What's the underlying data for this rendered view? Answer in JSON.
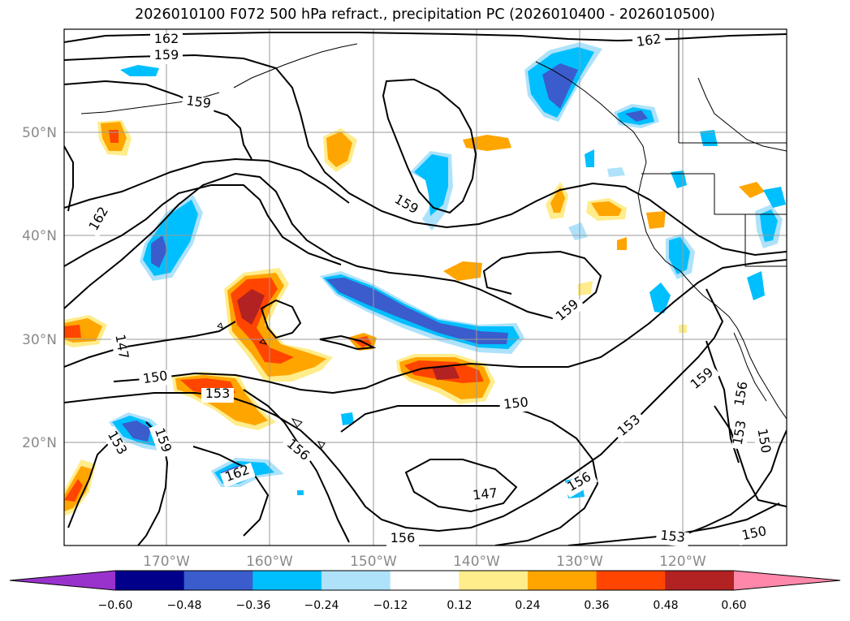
{
  "title": "2026010100 F072 500 hPa refract., precipitation PC (2026010400 - 2026010500)",
  "lon_labels": [
    "170°W",
    "160°W",
    "150°W",
    "140°W",
    "130°W",
    "120°W"
  ],
  "lat_labels": [
    "50°N",
    "40°N",
    "30°N",
    "20°N"
  ],
  "colorbar": {
    "tick_labels": [
      "−0.60",
      "−0.48",
      "−0.36",
      "−0.24",
      "−0.12",
      "0.12",
      "0.24",
      "0.36",
      "0.48",
      "0.60"
    ],
    "colors": [
      "#9932cc",
      "#00008b",
      "#3a5ccc",
      "#00bfff",
      "#aee2fb",
      "#ffffff",
      "#ffec8b",
      "#ffa500",
      "#ff4500",
      "#b22222",
      "#ff88aa"
    ],
    "levels": [
      -0.6,
      -0.48,
      -0.36,
      -0.24,
      -0.12,
      0.12,
      0.24,
      0.36,
      0.48,
      0.6
    ]
  },
  "contour_labels": [
    "162",
    "159",
    "159",
    "162",
    "159",
    "162",
    "147",
    "150",
    "153",
    "159",
    "153",
    "162",
    "156",
    "156",
    "150",
    "159",
    "153",
    "147",
    "156",
    "156",
    "153",
    "153",
    "150",
    "150",
    "159"
  ]
}
